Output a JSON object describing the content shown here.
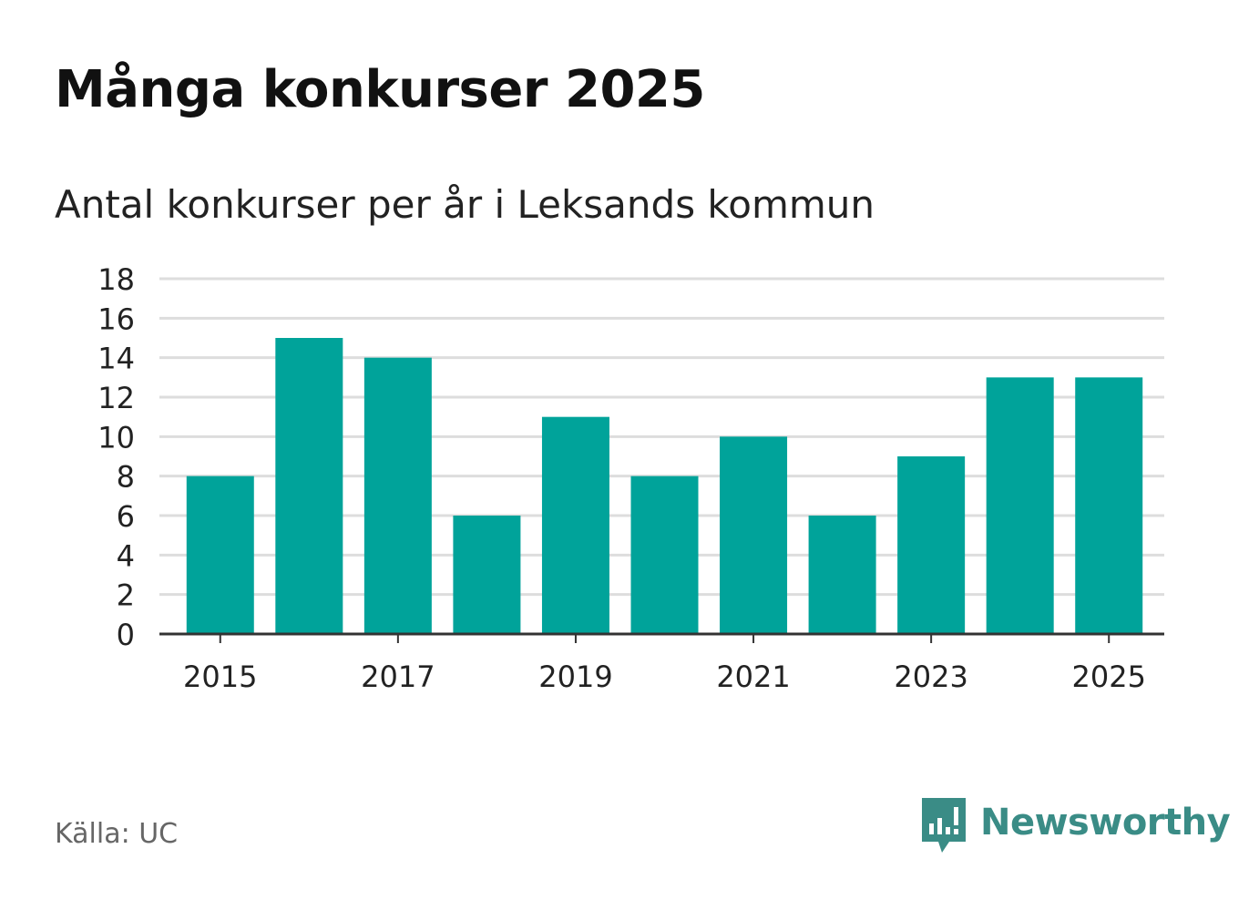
{
  "header": {
    "title": "Många konkurser 2025",
    "subtitle": "Antal konkurser per år i Leksands kommun"
  },
  "footer": {
    "source": "Källa: UC",
    "brand": "Newsworthy"
  },
  "colors": {
    "bar": "#00a39a",
    "grid": "#dddddd",
    "axis": "#333333",
    "brand": "#3a8c86"
  },
  "icons": {
    "brand_logo": "newsworthy-logo-icon"
  },
  "chart_data": {
    "type": "bar",
    "title": "Många konkurser 2025",
    "subtitle": "Antal konkurser per år i Leksands kommun",
    "xlabel": "",
    "ylabel": "",
    "categories": [
      2015,
      2016,
      2017,
      2018,
      2019,
      2020,
      2021,
      2022,
      2023,
      2024,
      2025
    ],
    "values": [
      8,
      15,
      14,
      6,
      11,
      8,
      10,
      6,
      9,
      13,
      13
    ],
    "x_tick_labels": [
      "2015",
      "2017",
      "2019",
      "2021",
      "2023",
      "2025"
    ],
    "y_ticks": [
      0,
      2,
      4,
      6,
      8,
      10,
      12,
      14,
      16,
      18
    ],
    "ylim": [
      0,
      18
    ],
    "grid": true,
    "legend": "none"
  }
}
